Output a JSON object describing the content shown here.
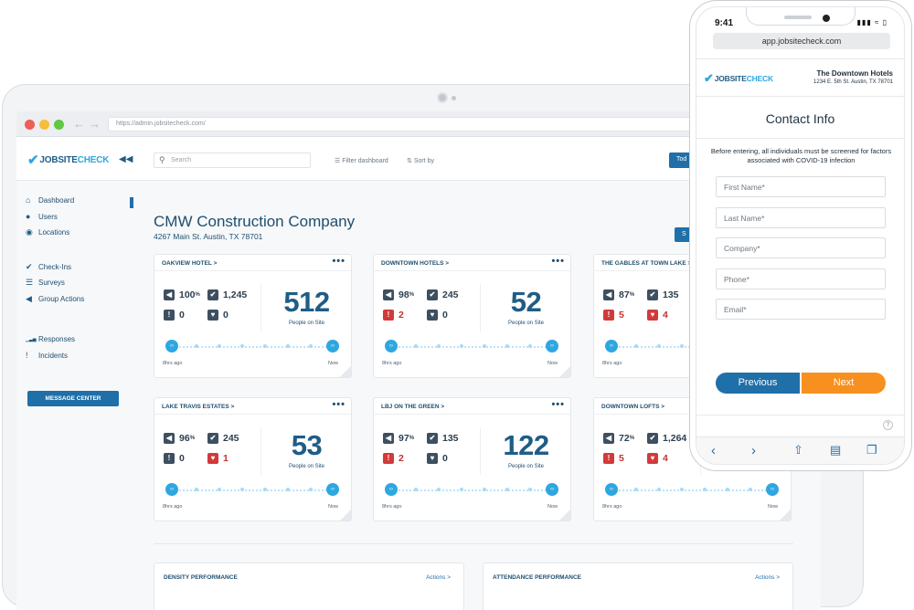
{
  "browser": {
    "url": "https://admin.jobsitecheck.com/"
  },
  "brand": {
    "word1": "JOBSITE",
    "word2": "CHECK"
  },
  "header": {
    "search_placeholder": "Search",
    "filter_label": "Filter dashboard",
    "sort_label": "Sort by",
    "today_label": "Tod"
  },
  "sidebar": {
    "groups": [
      [
        {
          "label": "Dashboard",
          "icon": "home-icon"
        },
        {
          "label": "Users",
          "icon": "user-icon"
        },
        {
          "label": "Locations",
          "icon": "location-pin-icon"
        }
      ],
      [
        {
          "label": "Check-Ins",
          "icon": "check-icon"
        },
        {
          "label": "Surveys",
          "icon": "list-icon"
        },
        {
          "label": "Group Actions",
          "icon": "megaphone-icon"
        }
      ],
      [
        {
          "label": "Responses",
          "icon": "bar-chart-icon"
        },
        {
          "label": "Incidents",
          "icon": "exclamation-icon"
        }
      ]
    ],
    "message_center": "MESSAGE CENTER"
  },
  "main": {
    "company": "CMW Construction Company",
    "address": "4267 Main St. Austin, TX 78701",
    "side_button": "S",
    "cards": [
      {
        "title": "OAKVIEW HOTEL >",
        "pct": "100",
        "checks": "1,245",
        "alerts": "0",
        "hearts": "0",
        "alert_red": false,
        "heart_red": false,
        "people": "512",
        "people_label": "People on Site",
        "start": "8hrs ago",
        "end": "Now"
      },
      {
        "title": "DOWNTOWN HOTELS >",
        "pct": "98",
        "checks": "245",
        "alerts": "2",
        "hearts": "0",
        "alert_red": true,
        "heart_red": false,
        "people": "52",
        "people_label": "People on Site",
        "start": "8hrs ago",
        "end": "Now"
      },
      {
        "title": "THE GABLES AT TOWN LAKE >",
        "pct": "87",
        "checks": "135",
        "alerts": "5",
        "hearts": "4",
        "alert_red": true,
        "heart_red": true,
        "people": "",
        "people_label": "",
        "start": "8hrs ago",
        "end": ""
      },
      {
        "title": "LAKE TRAVIS ESTATES >",
        "pct": "96",
        "checks": "245",
        "alerts": "0",
        "hearts": "1",
        "alert_red": false,
        "heart_red": true,
        "people": "53",
        "people_label": "People on Site",
        "start": "8hrs ago",
        "end": "Now"
      },
      {
        "title": "LBJ ON THE GREEN >",
        "pct": "97",
        "checks": "135",
        "alerts": "2",
        "hearts": "0",
        "alert_red": true,
        "heart_red": false,
        "people": "122",
        "people_label": "People on Site",
        "start": "8hrs ago",
        "end": "Now"
      },
      {
        "title": "DOWNTOWN LOFTS >",
        "pct": "72",
        "checks": "1,264",
        "alerts": "5",
        "hearts": "4",
        "alert_red": true,
        "heart_red": true,
        "people": "",
        "people_label": "",
        "start": "8hrs ago",
        "end": "Now"
      }
    ],
    "pct_suffix": "%",
    "perf": [
      {
        "title": "DENSITY PERFORMANCE",
        "actions": "Actions >"
      },
      {
        "title": "ATTENDANCE PERFORMANCE",
        "actions": "Actions >"
      }
    ]
  },
  "phone": {
    "time": "9:41",
    "url": "app.jobsitecheck.com",
    "hotel_name": "The Downtown Hotels",
    "hotel_address": "1234 E. 5th St. Austin, TX 78701",
    "title": "Contact Info",
    "note": "Before entering, all individuals must be screened for factors associated with COVID-19 infection",
    "fields": [
      {
        "placeholder": "First Name*"
      },
      {
        "placeholder": "Last Name*"
      },
      {
        "placeholder": "Company*"
      },
      {
        "placeholder": "Phone*"
      },
      {
        "placeholder": "Email*"
      }
    ],
    "prev_label": "Previous",
    "next_label": "Next",
    "help": "?"
  },
  "colors": {
    "primary": "#1f6fa8",
    "accent": "#2ea7e0",
    "orange": "#f7901e",
    "alert_red": "#d23a3a"
  }
}
